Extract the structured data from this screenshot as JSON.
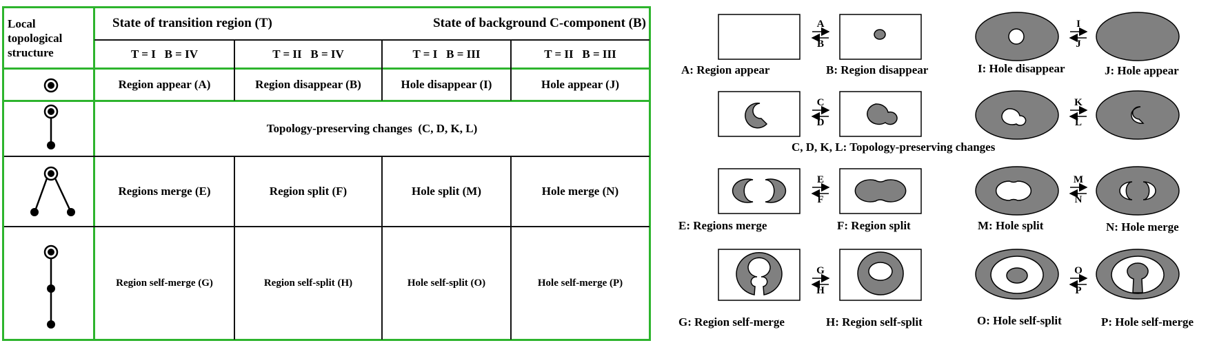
{
  "table": {
    "corner_label": "Local topological structure",
    "header": {
      "transition_region": "State of transition region (T)",
      "background_component": "State of background C-component (B)",
      "cols": [
        "T = I   B = IV",
        "T = II   B = IV",
        "T = I   B = III",
        "T = II   B = III"
      ]
    },
    "rows": [
      {
        "cells": [
          "Region appear (A)",
          "Region disappear (B)",
          "Hole disappear (I)",
          "Hole appear (J)"
        ]
      },
      {
        "span": "Topology-preserving changes  (C, D, K, L)"
      },
      {
        "cells": [
          "Regions merge (E)",
          "Region split (F)",
          "Hole split (M)",
          "Hole merge (N)"
        ]
      },
      {
        "cells": [
          "Region self-merge (G)",
          "Region self-split (H)",
          "Hole self-split (O)",
          "Hole self-merge (P)"
        ]
      }
    ]
  },
  "figure": {
    "arrows": [
      {
        "top": "A",
        "bottom": "B"
      },
      {
        "top": "I",
        "bottom": "J"
      },
      {
        "top": "C",
        "bottom": "D"
      },
      {
        "top": "K",
        "bottom": "L"
      },
      {
        "top": "E",
        "bottom": "F"
      },
      {
        "top": "M",
        "bottom": "N"
      },
      {
        "top": "G",
        "bottom": "H"
      },
      {
        "top": "O",
        "bottom": "P"
      }
    ],
    "labels": {
      "a": "A: Region appear",
      "b": "B: Region disappear",
      "i": "I: Hole disappear",
      "j": "J: Hole appear",
      "cdkl": "C, D, K, L: Topology-preserving changes",
      "e": "E: Regions merge",
      "f": "F: Region split",
      "m": "M: Hole split",
      "n": "N: Hole merge",
      "g": "G: Region self-merge",
      "h": "H: Region self-split",
      "o": "O: Hole self-split",
      "p": "P: Hole self-merge"
    }
  },
  "colors": {
    "table_border": "#2db42d",
    "region_fill": "#7f7f7f"
  }
}
